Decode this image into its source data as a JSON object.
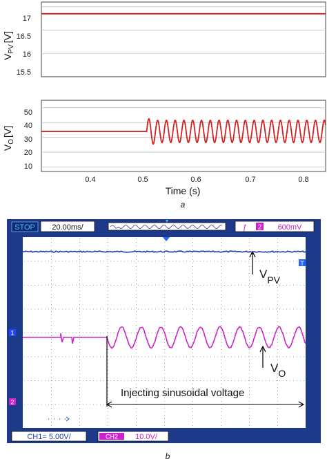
{
  "figure_a": {
    "panel_label": "a",
    "xlabel": "Time (s)",
    "x_ticks": [
      "0.4",
      "0.5",
      "0.6",
      "0.7",
      "0.8"
    ]
  },
  "chart_data": [
    {
      "type": "line",
      "ylabel": "V",
      "ylabel_sub": "PV",
      "ylabel_unit": "[V]",
      "y_ticks": [
        "17",
        "16.5",
        "16",
        "15.5"
      ],
      "ylim": [
        15.5,
        17.1
      ],
      "xlim": [
        0.3,
        0.84
      ],
      "grid": "horizontal",
      "color": "#d42020",
      "series": [
        {
          "x": [
            0.3,
            0.84
          ],
          "values": [
            16.85,
            16.85
          ]
        }
      ]
    },
    {
      "type": "line",
      "ylabel": "V",
      "ylabel_sub": "O",
      "ylabel_unit": "[V]",
      "y_ticks": [
        "50",
        "40",
        "30",
        "20",
        "10"
      ],
      "ylim": [
        7,
        55
      ],
      "xlim": [
        0.3,
        0.84
      ],
      "grid": "horizontal",
      "color": "#d42020",
      "series": [
        {
          "steady_value": 34,
          "step_time": 0.5,
          "oscillation": {
            "center": 34,
            "amplitude": 7.5,
            "frequency_hz": 60,
            "initial_peak": 42.5
          }
        }
      ]
    }
  ],
  "figure_b": {
    "panel_label": "b",
    "status": "STOP",
    "timebase": "20.00ms/",
    "trigger_channel": "2",
    "trigger_level": "600mV",
    "trigger_marker": "T",
    "ch1_marker": "1",
    "ch2_marker": "2",
    "ch1_scale": "CH1= 5.00V/",
    "ch2_label": "CH2",
    "ch2_scale": "10.0V/",
    "annotation_vpv": "V",
    "annotation_vpv_sub": "PV",
    "annotation_vo": "V",
    "annotation_vo_sub": "O",
    "annotation_inject": "Injecting sinusoidal voltage",
    "colors": {
      "frame": "#1d3a8a",
      "screen": "#ffffff",
      "ch1": "#1a3fae",
      "ch2": "#cc22cc",
      "grid": "#9aa4b8",
      "topbar": "#1d3a8a"
    }
  }
}
